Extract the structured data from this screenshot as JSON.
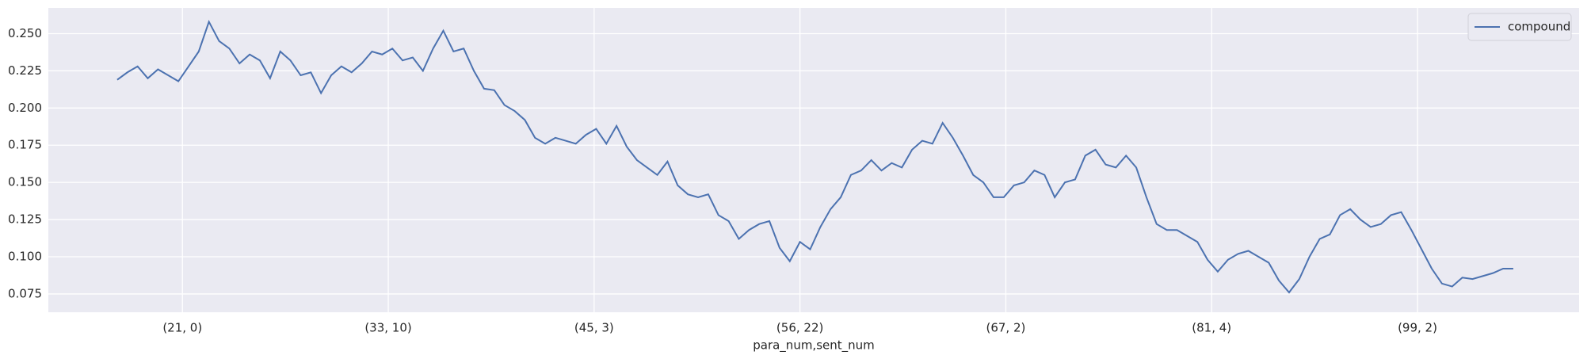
{
  "chart_data": {
    "type": "line",
    "x_label": "para_num,sent_num",
    "x": [
      0,
      5,
      10,
      15,
      20,
      25,
      30,
      35,
      40,
      45,
      50,
      55,
      60,
      65,
      70,
      75,
      80,
      85,
      90,
      95,
      100,
      105,
      110,
      115,
      120,
      125,
      130,
      135,
      140,
      145,
      150,
      155,
      160,
      165,
      170,
      175,
      180,
      185,
      190,
      195,
      200,
      205,
      210,
      215,
      220,
      225,
      230,
      235,
      240,
      245,
      250,
      255,
      260,
      265,
      270,
      275,
      280,
      285,
      290,
      295,
      300,
      305,
      310,
      315,
      320,
      325,
      330,
      335,
      340,
      345,
      350,
      355,
      360,
      365,
      370,
      375,
      380,
      385,
      390,
      395,
      400,
      405,
      410,
      415,
      420,
      425,
      430,
      435,
      440,
      445,
      450,
      455,
      460,
      465,
      470,
      475,
      480,
      485,
      490,
      495,
      500,
      505,
      510,
      515,
      520,
      525,
      530,
      535,
      540,
      545,
      550,
      555,
      560,
      565,
      570,
      575,
      580,
      585,
      590,
      595,
      600,
      605,
      610,
      615,
      620,
      625,
      630,
      635,
      640,
      645,
      650,
      655,
      660,
      665,
      670,
      675,
      680,
      685
    ],
    "series": [
      {
        "name": "compound",
        "color": "#4c72b0",
        "values": [
          0.219,
          0.224,
          0.228,
          0.22,
          0.226,
          0.222,
          0.218,
          0.228,
          0.238,
          0.258,
          0.245,
          0.24,
          0.23,
          0.236,
          0.232,
          0.22,
          0.238,
          0.232,
          0.222,
          0.224,
          0.21,
          0.222,
          0.228,
          0.224,
          0.23,
          0.238,
          0.236,
          0.24,
          0.232,
          0.234,
          0.225,
          0.24,
          0.252,
          0.238,
          0.24,
          0.225,
          0.213,
          0.212,
          0.202,
          0.198,
          0.192,
          0.18,
          0.176,
          0.18,
          0.178,
          0.176,
          0.182,
          0.186,
          0.176,
          0.188,
          0.174,
          0.165,
          0.16,
          0.155,
          0.164,
          0.148,
          0.142,
          0.14,
          0.142,
          0.128,
          0.124,
          0.112,
          0.118,
          0.122,
          0.124,
          0.106,
          0.097,
          0.11,
          0.105,
          0.12,
          0.132,
          0.14,
          0.155,
          0.158,
          0.165,
          0.158,
          0.163,
          0.16,
          0.172,
          0.178,
          0.176,
          0.19,
          0.18,
          0.168,
          0.155,
          0.15,
          0.14,
          0.14,
          0.148,
          0.15,
          0.158,
          0.155,
          0.14,
          0.15,
          0.152,
          0.168,
          0.172,
          0.162,
          0.16,
          0.168,
          0.16,
          0.14,
          0.122,
          0.118,
          0.118,
          0.114,
          0.11,
          0.098,
          0.09,
          0.098,
          0.102,
          0.104,
          0.1,
          0.096,
          0.084,
          0.076,
          0.085,
          0.1,
          0.112,
          0.115,
          0.128,
          0.132,
          0.125,
          0.12,
          0.122,
          0.128,
          0.13,
          0.118,
          0.105,
          0.092,
          0.082,
          0.08,
          0.086,
          0.085,
          0.087,
          0.089,
          0.092,
          0.092
        ]
      }
    ],
    "xlim": [
      -33.8,
      717.3
    ],
    "xticks": [
      {
        "value": 32,
        "label": "(21, 0)"
      },
      {
        "value": 133,
        "label": "(33, 10)"
      },
      {
        "value": 234,
        "label": "(45, 3)"
      },
      {
        "value": 335,
        "label": "(56, 22)"
      },
      {
        "value": 436,
        "label": "(67, 2)"
      },
      {
        "value": 537,
        "label": "(81, 4)"
      },
      {
        "value": 638,
        "label": "(99, 2)"
      }
    ],
    "ylim": [
      0.0627,
      0.2673
    ],
    "yticks": [
      {
        "value": 0.075,
        "label": "0.075"
      },
      {
        "value": 0.1,
        "label": "0.100"
      },
      {
        "value": 0.125,
        "label": "0.125"
      },
      {
        "value": 0.15,
        "label": "0.150"
      },
      {
        "value": 0.175,
        "label": "0.175"
      },
      {
        "value": 0.2,
        "label": "0.200"
      },
      {
        "value": 0.225,
        "label": "0.225"
      },
      {
        "value": 0.25,
        "label": "0.250"
      }
    ],
    "grid": true,
    "legend": "upper right"
  }
}
